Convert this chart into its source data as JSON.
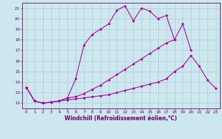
{
  "xlabel": "Windchill (Refroidissement éolien,°C)",
  "bg_color": "#cce8ee",
  "line_color": "#aa00aa",
  "grid_color": "#aacccc",
  "spine_color": "#660066",
  "xlim": [
    -0.5,
    23.5
  ],
  "ylim": [
    11.5,
    21.5
  ],
  "yticks": [
    12,
    13,
    14,
    15,
    16,
    17,
    18,
    19,
    20,
    21
  ],
  "xticks": [
    0,
    1,
    2,
    3,
    4,
    5,
    6,
    7,
    8,
    9,
    10,
    11,
    12,
    13,
    14,
    15,
    16,
    17,
    18,
    19,
    20,
    21,
    22,
    23
  ],
  "line1_x": [
    0,
    1,
    2,
    3,
    4,
    5,
    6,
    7,
    8,
    9,
    10,
    11,
    12,
    13,
    14,
    15,
    16,
    17,
    18,
    19,
    20
  ],
  "line1_y": [
    13.5,
    12.2,
    12.0,
    12.1,
    12.2,
    12.5,
    14.3,
    17.5,
    18.5,
    19.0,
    19.5,
    20.8,
    21.2,
    19.8,
    21.0,
    20.7,
    20.0,
    20.3,
    18.0,
    19.5,
    17.0
  ],
  "line2_x": [
    0,
    1,
    2,
    3,
    4,
    5,
    6,
    7,
    8,
    9,
    10,
    11,
    12,
    13,
    14,
    15,
    16,
    17,
    18
  ],
  "line2_y": [
    13.5,
    12.2,
    12.0,
    12.1,
    12.2,
    12.5,
    12.6,
    12.9,
    13.3,
    13.7,
    14.2,
    14.7,
    15.2,
    15.7,
    16.2,
    16.7,
    17.2,
    17.7,
    18.0
  ],
  "line3_x": [
    0,
    1,
    2,
    3,
    4,
    5,
    6,
    7,
    8,
    9,
    10,
    11,
    12,
    13,
    14,
    15,
    16,
    17,
    18,
    19,
    20,
    21,
    22,
    23
  ],
  "line3_y": [
    13.5,
    12.2,
    12.0,
    12.1,
    12.2,
    12.3,
    12.4,
    12.5,
    12.6,
    12.7,
    12.8,
    13.0,
    13.2,
    13.4,
    13.6,
    13.8,
    14.0,
    14.3,
    15.0,
    15.5,
    16.5,
    15.5,
    14.2,
    13.4
  ],
  "tick_fontsize": 4.5,
  "xlabel_fontsize": 5.5
}
